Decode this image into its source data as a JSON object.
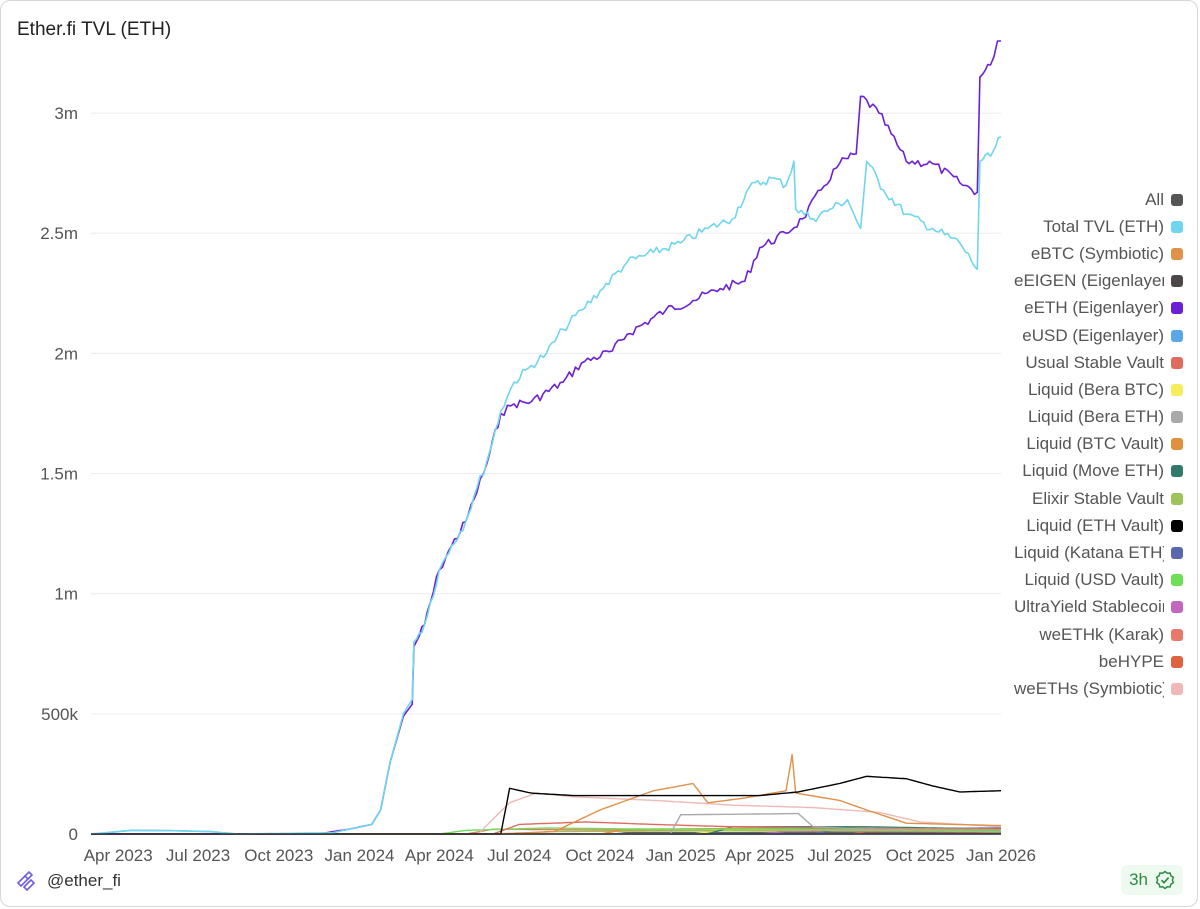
{
  "title": "Ether.fi TVL (ETH)",
  "footer": {
    "handle": "@ether_fi",
    "badge": "3h"
  },
  "legend": [
    {
      "label": "All",
      "color": "#555555"
    },
    {
      "label": "Total TVL (ETH)",
      "color": "#6fd6ee"
    },
    {
      "label": "eBTC (Symbiotic)",
      "color": "#e0914a"
    },
    {
      "label": "eEIGEN (Eigenlayer)",
      "color": "#4d4747"
    },
    {
      "label": "eETH (Eigenlayer)",
      "color": "#6c20d6"
    },
    {
      "label": "eUSD (Eigenlayer)",
      "color": "#5ba6e6"
    },
    {
      "label": "Usual Stable Vault",
      "color": "#e26b5f"
    },
    {
      "label": "Liquid (Bera BTC)",
      "color": "#f5ee5c"
    },
    {
      "label": "Liquid (Bera ETH)",
      "color": "#a9a9a9"
    },
    {
      "label": "Liquid (BTC Vault)",
      "color": "#e0913d"
    },
    {
      "label": "Liquid (Move ETH)",
      "color": "#2f7a6a"
    },
    {
      "label": "Elixir Stable Vault",
      "color": "#9cc45a"
    },
    {
      "label": "Liquid (ETH Vault)",
      "color": "#000000"
    },
    {
      "label": "Liquid (Katana ETH)",
      "color": "#5a68ad"
    },
    {
      "label": "Liquid (USD Vault)",
      "color": "#6ddf57"
    },
    {
      "label": "UltraYield Stablecoin",
      "color": "#c266bf"
    },
    {
      "label": "weETHk (Karak)",
      "color": "#e8786a"
    },
    {
      "label": "beHYPE",
      "color": "#e0623f"
    },
    {
      "label": "weETHs (Symbiotic)",
      "color": "#eeb9b6"
    }
  ],
  "chart_data": {
    "type": "line",
    "title": "Ether.fi TVL (ETH)",
    "xlabel": "",
    "ylabel": "",
    "x_ticks": [
      "Apr 2023",
      "Jul 2023",
      "Oct 2023",
      "Jan 2024",
      "Apr 2024",
      "Jul 2024",
      "Oct 2024",
      "Jan 2025",
      "Apr 2025",
      "Jul 2025",
      "Oct 2025",
      "Jan 2026"
    ],
    "y_ticks": [
      0,
      500000,
      1000000,
      1500000,
      2000000,
      2500000,
      3000000
    ],
    "y_tick_labels": [
      "0",
      "500k",
      "1m",
      "1.5m",
      "2m",
      "2.5m",
      "3m"
    ],
    "xlim": [
      "2023-03-01",
      "2026-01-01"
    ],
    "ylim": [
      0,
      3300000
    ],
    "grid": "horizontal",
    "legend_position": "right",
    "series": [
      {
        "name": "Total TVL (ETH)",
        "color": "#6fd6ee",
        "points": [
          [
            "2023-03-01",
            0
          ],
          [
            "2023-04-15",
            15000
          ],
          [
            "2023-06-01",
            14000
          ],
          [
            "2023-07-15",
            10000
          ],
          [
            "2023-08-15",
            0
          ],
          [
            "2023-12-01",
            5000
          ],
          [
            "2023-12-20",
            20000
          ],
          [
            "2024-01-15",
            40000
          ],
          [
            "2024-01-25",
            100000
          ],
          [
            "2024-02-05",
            300000
          ],
          [
            "2024-02-20",
            500000
          ],
          [
            "2024-03-01",
            560000
          ],
          [
            "2024-03-03",
            800000
          ],
          [
            "2024-03-15",
            870000
          ],
          [
            "2024-04-01",
            1100000
          ],
          [
            "2024-04-15",
            1200000
          ],
          [
            "2024-05-01",
            1300000
          ],
          [
            "2024-05-10",
            1400000
          ],
          [
            "2024-05-25",
            1550000
          ],
          [
            "2024-06-10",
            1760000
          ],
          [
            "2024-06-25",
            1880000
          ],
          [
            "2024-07-15",
            1950000
          ],
          [
            "2024-08-01",
            2000000
          ],
          [
            "2024-08-20",
            2100000
          ],
          [
            "2024-09-10",
            2180000
          ],
          [
            "2024-10-01",
            2260000
          ],
          [
            "2024-11-01",
            2380000
          ],
          [
            "2024-12-01",
            2420000
          ],
          [
            "2025-01-01",
            2460000
          ],
          [
            "2025-02-01",
            2520000
          ],
          [
            "2025-03-01",
            2560000
          ],
          [
            "2025-03-20",
            2690000
          ],
          [
            "2025-04-15",
            2730000
          ],
          [
            "2025-05-01",
            2700000
          ],
          [
            "2025-05-10",
            2800000
          ],
          [
            "2025-05-12",
            2600000
          ],
          [
            "2025-06-01",
            2560000
          ],
          [
            "2025-06-20",
            2600000
          ],
          [
            "2025-07-10",
            2640000
          ],
          [
            "2025-07-25",
            2520000
          ],
          [
            "2025-08-01",
            2800000
          ],
          [
            "2025-08-20",
            2680000
          ],
          [
            "2025-09-15",
            2580000
          ],
          [
            "2025-10-15",
            2520000
          ],
          [
            "2025-11-15",
            2460000
          ],
          [
            "2025-12-05",
            2350000
          ],
          [
            "2025-12-08",
            2800000
          ],
          [
            "2025-12-20",
            2820000
          ],
          [
            "2026-01-01",
            2900000
          ]
        ]
      },
      {
        "name": "eETH (Eigenlayer)",
        "color": "#6c20d6",
        "points": [
          [
            "2023-03-01",
            0
          ],
          [
            "2023-11-15",
            0
          ],
          [
            "2023-12-20",
            20000
          ],
          [
            "2024-01-15",
            40000
          ],
          [
            "2024-01-25",
            100000
          ],
          [
            "2024-02-05",
            300000
          ],
          [
            "2024-02-20",
            490000
          ],
          [
            "2024-03-01",
            540000
          ],
          [
            "2024-03-03",
            780000
          ],
          [
            "2024-03-15",
            870000
          ],
          [
            "2024-04-01",
            1100000
          ],
          [
            "2024-04-15",
            1200000
          ],
          [
            "2024-05-01",
            1300000
          ],
          [
            "2024-05-10",
            1390000
          ],
          [
            "2024-05-25",
            1540000
          ],
          [
            "2024-06-10",
            1750000
          ],
          [
            "2024-06-25",
            1790000
          ],
          [
            "2024-07-15",
            1800000
          ],
          [
            "2024-08-20",
            1880000
          ],
          [
            "2024-09-10",
            1960000
          ],
          [
            "2024-10-15",
            2010000
          ],
          [
            "2024-11-01",
            2080000
          ],
          [
            "2024-12-15",
            2180000
          ],
          [
            "2025-01-15",
            2220000
          ],
          [
            "2025-02-15",
            2270000
          ],
          [
            "2025-03-15",
            2300000
          ],
          [
            "2025-04-01",
            2440000
          ],
          [
            "2025-05-01",
            2500000
          ],
          [
            "2025-05-20",
            2560000
          ],
          [
            "2025-06-10",
            2680000
          ],
          [
            "2025-07-01",
            2790000
          ],
          [
            "2025-07-20",
            2830000
          ],
          [
            "2025-07-25",
            3070000
          ],
          [
            "2025-08-15",
            3000000
          ],
          [
            "2025-09-15",
            2800000
          ],
          [
            "2025-10-15",
            2790000
          ],
          [
            "2025-11-15",
            2710000
          ],
          [
            "2025-12-05",
            2670000
          ],
          [
            "2025-12-08",
            3150000
          ],
          [
            "2025-12-20",
            3200000
          ],
          [
            "2025-12-28",
            3300000
          ],
          [
            "2026-01-01",
            3300000
          ]
        ]
      },
      {
        "name": "Liquid (ETH Vault)",
        "color": "#000000",
        "points": [
          [
            "2023-03-01",
            0
          ],
          [
            "2024-06-10",
            0
          ],
          [
            "2024-06-20",
            190000
          ],
          [
            "2024-07-15",
            170000
          ],
          [
            "2024-09-01",
            160000
          ],
          [
            "2024-12-01",
            160000
          ],
          [
            "2025-04-01",
            160000
          ],
          [
            "2025-05-15",
            175000
          ],
          [
            "2025-07-01",
            210000
          ],
          [
            "2025-08-01",
            240000
          ],
          [
            "2025-09-15",
            230000
          ],
          [
            "2025-10-15",
            200000
          ],
          [
            "2025-11-15",
            175000
          ],
          [
            "2026-01-01",
            180000
          ]
        ]
      },
      {
        "name": "eBTC (Symbiotic)",
        "color": "#e0914a",
        "points": [
          [
            "2023-03-01",
            0
          ],
          [
            "2024-06-01",
            0
          ],
          [
            "2024-08-10",
            10000
          ],
          [
            "2024-10-01",
            100000
          ],
          [
            "2024-12-01",
            180000
          ],
          [
            "2025-01-15",
            210000
          ],
          [
            "2025-02-01",
            130000
          ],
          [
            "2025-03-15",
            150000
          ],
          [
            "2025-05-01",
            180000
          ],
          [
            "2025-05-08",
            330000
          ],
          [
            "2025-05-12",
            170000
          ],
          [
            "2025-07-01",
            140000
          ],
          [
            "2025-08-01",
            100000
          ],
          [
            "2025-09-15",
            45000
          ],
          [
            "2026-01-01",
            35000
          ]
        ]
      },
      {
        "name": "weETHs (Symbiotic)",
        "color": "#eeb9b6",
        "points": [
          [
            "2023-03-01",
            0
          ],
          [
            "2024-05-15",
            0
          ],
          [
            "2024-06-20",
            130000
          ],
          [
            "2024-07-20",
            170000
          ],
          [
            "2024-09-01",
            155000
          ],
          [
            "2024-12-01",
            140000
          ],
          [
            "2025-03-01",
            120000
          ],
          [
            "2025-06-01",
            110000
          ],
          [
            "2025-08-15",
            90000
          ],
          [
            "2025-10-01",
            50000
          ],
          [
            "2026-01-01",
            30000
          ]
        ]
      },
      {
        "name": "Liquid (Bera ETH)",
        "color": "#a9a9a9",
        "points": [
          [
            "2023-03-01",
            0
          ],
          [
            "2024-12-20",
            0
          ],
          [
            "2025-01-01",
            80000
          ],
          [
            "2025-05-15",
            85000
          ],
          [
            "2025-06-01",
            30000
          ],
          [
            "2025-08-01",
            20000
          ],
          [
            "2026-01-01",
            15000
          ]
        ]
      },
      {
        "name": "Usual Stable Vault",
        "color": "#e26b5f",
        "points": [
          [
            "2023-03-01",
            0
          ],
          [
            "2024-06-01",
            0
          ],
          [
            "2024-07-01",
            40000
          ],
          [
            "2024-09-15",
            50000
          ],
          [
            "2024-12-01",
            40000
          ],
          [
            "2025-03-01",
            30000
          ],
          [
            "2025-09-01",
            20000
          ],
          [
            "2026-01-01",
            15000
          ]
        ]
      },
      {
        "name": "Liquid (USD Vault)",
        "color": "#6ddf57",
        "points": [
          [
            "2023-03-01",
            0
          ],
          [
            "2024-04-01",
            0
          ],
          [
            "2024-05-01",
            15000
          ],
          [
            "2024-08-01",
            25000
          ],
          [
            "2024-12-01",
            20000
          ],
          [
            "2025-06-01",
            20000
          ],
          [
            "2026-01-01",
            10000
          ]
        ]
      },
      {
        "name": "Liquid (BTC Vault)",
        "color": "#e0913d",
        "points": [
          [
            "2023-03-01",
            0
          ],
          [
            "2024-10-01",
            0
          ],
          [
            "2024-11-01",
            20000
          ],
          [
            "2025-06-01",
            25000
          ],
          [
            "2026-01-01",
            20000
          ]
        ]
      },
      {
        "name": "Liquid (Move ETH)",
        "color": "#2f7a6a",
        "points": [
          [
            "2023-03-01",
            0
          ],
          [
            "2025-02-01",
            0
          ],
          [
            "2025-03-01",
            30000
          ],
          [
            "2025-08-01",
            30000
          ],
          [
            "2026-01-01",
            20000
          ]
        ]
      },
      {
        "name": "Elixir Stable Vault",
        "color": "#9cc45a",
        "points": [
          [
            "2023-03-01",
            0
          ],
          [
            "2024-07-01",
            0
          ],
          [
            "2024-08-01",
            10000
          ],
          [
            "2025-06-01",
            15000
          ],
          [
            "2026-01-01",
            12000
          ]
        ]
      },
      {
        "name": "eUSD (Eigenlayer)",
        "color": "#5ba6e6",
        "points": [
          [
            "2023-03-01",
            0
          ],
          [
            "2023-03-20",
            5000
          ],
          [
            "2023-04-15",
            15000
          ],
          [
            "2023-06-01",
            14000
          ],
          [
            "2023-07-15",
            10000
          ],
          [
            "2023-08-15",
            0
          ],
          [
            "2026-01-01",
            0
          ]
        ]
      },
      {
        "name": "Liquid (Bera BTC)",
        "color": "#f5ee5c",
        "points": [
          [
            "2023-03-01",
            0
          ],
          [
            "2025-01-15",
            0
          ],
          [
            "2025-02-15",
            15000
          ],
          [
            "2025-06-01",
            20000
          ],
          [
            "2026-01-01",
            10000
          ]
        ]
      },
      {
        "name": "Liquid (Katana ETH)",
        "color": "#5a68ad",
        "points": [
          [
            "2023-03-01",
            0
          ],
          [
            "2025-06-01",
            0
          ],
          [
            "2025-07-01",
            20000
          ],
          [
            "2026-01-01",
            25000
          ]
        ]
      },
      {
        "name": "UltraYield Stablecoin",
        "color": "#c266bf",
        "points": [
          [
            "2023-03-01",
            0
          ],
          [
            "2025-04-01",
            0
          ],
          [
            "2025-05-01",
            10000
          ],
          [
            "2026-01-01",
            15000
          ]
        ]
      },
      {
        "name": "weETHk (Karak)",
        "color": "#e8786a",
        "points": [
          [
            "2023-03-01",
            0
          ],
          [
            "2024-05-01",
            0
          ],
          [
            "2024-06-01",
            20000
          ],
          [
            "2024-12-01",
            15000
          ],
          [
            "2026-01-01",
            8000
          ]
        ]
      },
      {
        "name": "beHYPE",
        "color": "#e0623f",
        "points": [
          [
            "2023-03-01",
            0
          ],
          [
            "2025-07-15",
            0
          ],
          [
            "2025-08-01",
            10000
          ],
          [
            "2026-01-01",
            20000
          ]
        ]
      },
      {
        "name": "eEIGEN (Eigenlayer)",
        "color": "#4d4747",
        "points": [
          [
            "2023-03-01",
            0
          ],
          [
            "2024-10-15",
            0
          ],
          [
            "2024-11-01",
            5000
          ],
          [
            "2026-01-01",
            5000
          ]
        ]
      }
    ]
  }
}
